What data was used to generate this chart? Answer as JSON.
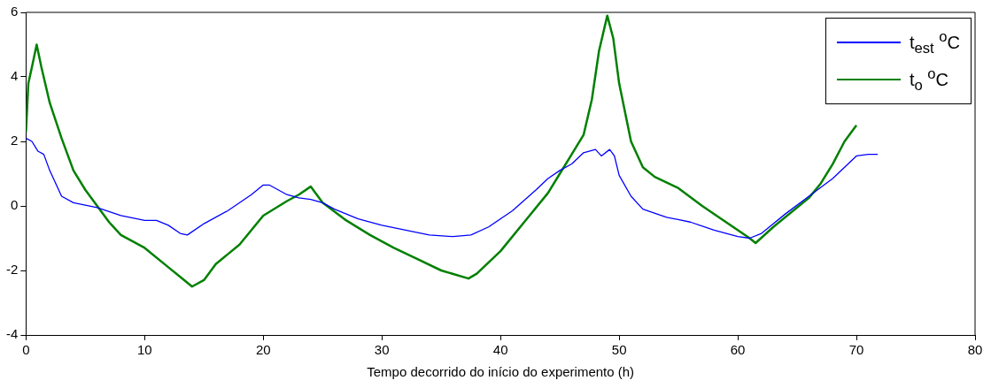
{
  "chart_data": {
    "type": "line",
    "xlabel": "Tempo decorrido do início do experimento (h)",
    "xlim": [
      0,
      80
    ],
    "xticks": [
      0,
      10,
      20,
      30,
      40,
      50,
      60,
      70,
      80
    ],
    "ylim": [
      -4,
      6
    ],
    "yticks": [
      -4,
      -2,
      0,
      2,
      4,
      6
    ],
    "grid": false,
    "legend": "top right",
    "line_style": "solid",
    "marker": "none",
    "series": [
      {
        "name": "t$_{est}$ $^{o}$C",
        "color": "#0000ff",
        "x": [
          0,
          0.5,
          1,
          1.5,
          2,
          3,
          4,
          6,
          8,
          10,
          11,
          12,
          13,
          13.6,
          15,
          17,
          19,
          20,
          20.5,
          22,
          23,
          24,
          25,
          26,
          28,
          30,
          32,
          34,
          36,
          37.5,
          39,
          41,
          43,
          44,
          45,
          46,
          47,
          48,
          48.5,
          49.2,
          49.6,
          50,
          51,
          52,
          54,
          56,
          58,
          60,
          61,
          62,
          64,
          66,
          68,
          69,
          70,
          71,
          71.8
        ],
        "values": [
          2.1,
          2.0,
          1.7,
          1.6,
          1.1,
          0.3,
          0.1,
          -0.05,
          -0.3,
          -0.45,
          -0.45,
          -0.6,
          -0.85,
          -0.9,
          -0.55,
          -0.15,
          0.35,
          0.65,
          0.65,
          0.35,
          0.25,
          0.2,
          0.1,
          -0.1,
          -0.4,
          -0.6,
          -0.75,
          -0.9,
          -0.95,
          -0.9,
          -0.65,
          -0.15,
          0.5,
          0.85,
          1.1,
          1.3,
          1.65,
          1.75,
          1.55,
          1.75,
          1.55,
          0.95,
          0.3,
          -0.1,
          -0.35,
          -0.5,
          -0.75,
          -0.95,
          -1.0,
          -0.85,
          -0.25,
          0.3,
          0.85,
          1.2,
          1.55,
          1.6,
          1.6
        ]
      },
      {
        "name": "t$_{o}$ $^{o}$C",
        "color": "#008000",
        "x": [
          0,
          0.2,
          0.5,
          0.9,
          1.3,
          2,
          3,
          4,
          5,
          6,
          7,
          8,
          10,
          12,
          13,
          14,
          15,
          16,
          18,
          20,
          22,
          23,
          24,
          25,
          27,
          29,
          31,
          33,
          35,
          37.3,
          38,
          40,
          42,
          44,
          45,
          46,
          47,
          47.7,
          48.3,
          49,
          49.5,
          50,
          51,
          52,
          53,
          55,
          57,
          59,
          61,
          61.5,
          63,
          65,
          66,
          67,
          68,
          69,
          70
        ],
        "values": [
          2.3,
          3.8,
          4.3,
          5.0,
          4.3,
          3.2,
          2.1,
          1.1,
          0.5,
          0.0,
          -0.5,
          -0.9,
          -1.3,
          -1.9,
          -2.2,
          -2.5,
          -2.3,
          -1.8,
          -1.2,
          -0.3,
          0.15,
          0.35,
          0.6,
          0.1,
          -0.45,
          -0.9,
          -1.3,
          -1.65,
          -2.0,
          -2.25,
          -2.1,
          -1.4,
          -0.5,
          0.4,
          1.0,
          1.6,
          2.2,
          3.3,
          4.8,
          5.9,
          5.2,
          3.8,
          2.0,
          1.2,
          0.9,
          0.55,
          0.0,
          -0.5,
          -1.0,
          -1.15,
          -0.65,
          -0.05,
          0.25,
          0.7,
          1.3,
          2.0,
          2.5
        ]
      }
    ]
  }
}
